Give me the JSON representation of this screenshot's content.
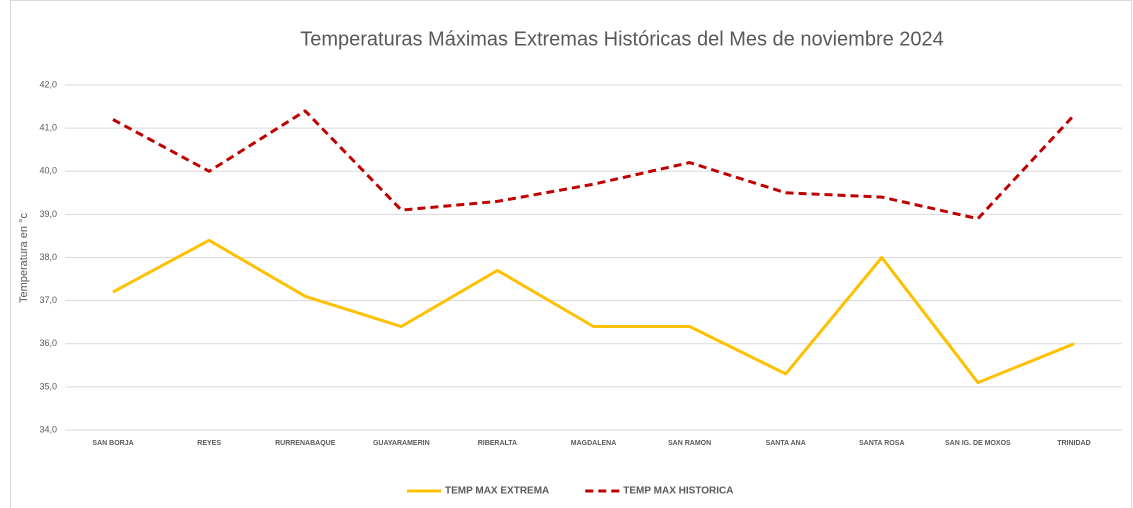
{
  "chart_data": {
    "type": "line",
    "title": "Temperaturas Máximas Extremas Históricas del Mes de noviembre 2024",
    "y_label": "Temperatura en °c",
    "categories": [
      "SAN BORJA",
      "REYES",
      "RURRENABAQUE",
      "GUAYARAMERIN",
      "RIBERALTA",
      "MAGDALENA",
      "SAN RAMON",
      "SANTA ANA",
      "SANTA ROSA",
      "SAN IG. DE MOXOS",
      "TRINIDAD"
    ],
    "series": [
      {
        "name": "TEMP MAX EXTREMA",
        "color": "#ffc000",
        "dashed": false,
        "values": [
          37.2,
          38.4,
          37.1,
          36.4,
          37.7,
          36.4,
          36.4,
          35.3,
          38.0,
          35.1,
          36.0
        ]
      },
      {
        "name": "TEMP MAX HISTORICA",
        "color": "#c00000",
        "dashed": true,
        "values": [
          41.2,
          40.0,
          41.4,
          39.1,
          39.3,
          39.7,
          40.2,
          39.5,
          39.4,
          38.9,
          41.3
        ]
      }
    ],
    "ylim": [
      34,
      42
    ],
    "yticks": [
      {
        "value": 34,
        "label": "34,0"
      },
      {
        "value": 35,
        "label": "35,0"
      },
      {
        "value": 36,
        "label": "36,0"
      },
      {
        "value": 37,
        "label": "37,0"
      },
      {
        "value": 38,
        "label": "38,0"
      },
      {
        "value": 39,
        "label": "39,0"
      },
      {
        "value": 40,
        "label": "40,0"
      },
      {
        "value": 41,
        "label": "41,0"
      },
      {
        "value": 42,
        "label": "42,0"
      }
    ],
    "grid": true,
    "legend": "bottom"
  }
}
